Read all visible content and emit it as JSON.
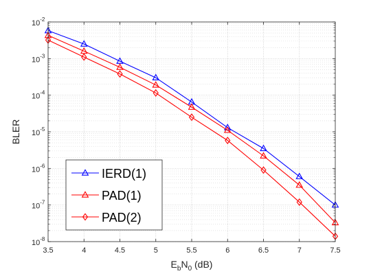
{
  "chart_data": {
    "type": "line",
    "xlabel": {
      "base": "E",
      "sub1": "b",
      "mid": "N",
      "sub2": "0",
      "unit": " (dB)"
    },
    "ylabel": "BLER",
    "x": [
      3.5,
      4,
      4.5,
      5,
      5.5,
      6,
      6.5,
      7,
      7.5
    ],
    "x_ticks": [
      "3.5",
      "4",
      "4.5",
      "5",
      "5.5",
      "6",
      "6.5",
      "7",
      "7.5"
    ],
    "y_scale": "log",
    "ylim": [
      1e-08,
      0.01
    ],
    "y_ticks": [
      {
        "base": "10",
        "exp": "-2"
      },
      {
        "base": "10",
        "exp": "-3"
      },
      {
        "base": "10",
        "exp": "-4"
      },
      {
        "base": "10",
        "exp": "-5"
      },
      {
        "base": "10",
        "exp": "-6"
      },
      {
        "base": "10",
        "exp": "-7"
      },
      {
        "base": "10",
        "exp": "-8"
      }
    ],
    "grid": true,
    "legend_position": "bottom-left",
    "series": [
      {
        "name": "IERD(1)",
        "color": "#0000ff",
        "marker": "triangle",
        "values": [
          0.0058,
          0.0025,
          0.00085,
          0.0003,
          6.5e-05,
          1.3e-05,
          3.5e-06,
          6e-07,
          1e-07
        ]
      },
      {
        "name": "PAD(1)",
        "color": "#ff0000",
        "marker": "triangle",
        "values": [
          0.0043,
          0.0016,
          0.00058,
          0.00019,
          4.7e-05,
          1.1e-05,
          2.2e-06,
          3.5e-07,
          3.3e-08
        ]
      },
      {
        "name": "PAD(2)",
        "color": "#ff0000",
        "marker": "diamond",
        "values": [
          0.0032,
          0.0011,
          0.00038,
          0.000115,
          2.5e-05,
          5.8e-06,
          9e-07,
          1.2e-07,
          1.4e-08
        ]
      }
    ]
  }
}
